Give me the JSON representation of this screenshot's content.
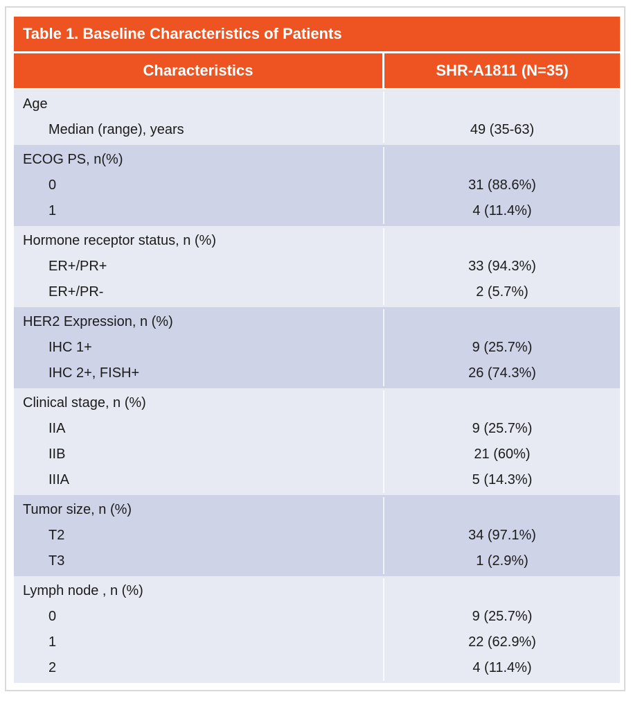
{
  "title": "Table 1. Baseline Characteristics of Patients",
  "columns": [
    "Characteristics",
    "SHR-A1811 (N=35)"
  ],
  "sections": [
    {
      "header": "Age",
      "shade": "light",
      "rows": [
        {
          "label": "Median (range), years",
          "value": "49 (35-63)"
        }
      ]
    },
    {
      "header": "ECOG PS, n(%)",
      "shade": "dark",
      "rows": [
        {
          "label": "0",
          "value": "31 (88.6%)"
        },
        {
          "label": "1",
          "value": "4 (11.4%)"
        }
      ]
    },
    {
      "header": "Hormone receptor status, n (%)",
      "shade": "light",
      "rows": [
        {
          "label": "ER+/PR+",
          "value": "33 (94.3%)"
        },
        {
          "label": "ER+/PR-",
          "value": "2 (5.7%)"
        }
      ]
    },
    {
      "header": "HER2 Expression, n (%)",
      "shade": "dark",
      "rows": [
        {
          "label": "IHC 1+",
          "value": "9 (25.7%)"
        },
        {
          "label": "IHC 2+, FISH+",
          "value": "26 (74.3%)"
        }
      ]
    },
    {
      "header": "Clinical stage, n (%)",
      "shade": "light",
      "rows": [
        {
          "label": "IIA",
          "value": "9 (25.7%)"
        },
        {
          "label": "IIB",
          "value": "21 (60%)"
        },
        {
          "label": "IIIA",
          "value": "5 (14.3%)"
        }
      ]
    },
    {
      "header": "Tumor size, n (%)",
      "shade": "dark",
      "rows": [
        {
          "label": "T2",
          "value": "34 (97.1%)"
        },
        {
          "label": "T3",
          "value": "1 (2.9%)"
        }
      ]
    },
    {
      "header": "Lymph node , n (%)",
      "shade": "light",
      "rows": [
        {
          "label": "0",
          "value": "9 (25.7%)"
        },
        {
          "label": "1",
          "value": "22 (62.9%)"
        },
        {
          "label": "2",
          "value": "4 (11.4%)"
        }
      ]
    }
  ],
  "colors": {
    "accent_orange": "#ee5322",
    "row_light": "#e8eaf3",
    "row_dark": "#ced3e7",
    "border_gray": "#d9d9d9",
    "header_text": "#ffffff",
    "body_text": "#1b1b1b"
  }
}
